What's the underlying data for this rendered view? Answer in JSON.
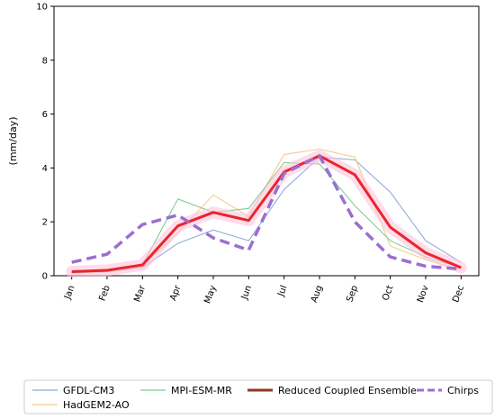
{
  "chart_data": {
    "type": "line",
    "title": "",
    "xlabel": "",
    "ylabel": "(mm/day)",
    "ylim": [
      0,
      10
    ],
    "yticks": [
      0,
      2,
      4,
      6,
      8,
      10
    ],
    "grid": false,
    "legend_placement": "bottom",
    "categories": [
      "Jan",
      "Feb",
      "Mar",
      "Apr",
      "May",
      "Jun",
      "Jul",
      "Aug",
      "Sep",
      "Oct",
      "Nov",
      "Dec"
    ],
    "series": [
      {
        "name": "GFDL-CM3",
        "color": "#8fa6d8",
        "style": "solid",
        "values": [
          0.1,
          0.15,
          0.3,
          1.2,
          1.7,
          1.3,
          3.2,
          4.4,
          4.3,
          3.1,
          1.3,
          0.5
        ]
      },
      {
        "name": "HadGEM2-AO",
        "color": "#f3c98a",
        "style": "solid",
        "values": [
          0.1,
          0.15,
          0.35,
          1.6,
          3.0,
          2.2,
          4.5,
          4.7,
          4.4,
          1.1,
          0.6,
          0.2
        ]
      },
      {
        "name": "MPI-ESM-MR",
        "color": "#7dc98d",
        "style": "solid",
        "values": [
          0.1,
          0.15,
          0.4,
          2.85,
          2.35,
          2.5,
          4.2,
          4.15,
          2.6,
          1.3,
          0.7,
          0.3
        ]
      },
      {
        "name": "Reduced Coupled Ensemble",
        "color": "#e8262a",
        "style": "bold",
        "edge": "#8c3a22",
        "values": [
          0.15,
          0.2,
          0.4,
          1.85,
          2.35,
          2.05,
          3.85,
          4.45,
          3.75,
          1.8,
          0.85,
          0.3
        ]
      },
      {
        "name": "Chirps",
        "color": "#9b6fcf",
        "style": "dashed",
        "values": [
          0.5,
          0.8,
          1.9,
          2.25,
          1.4,
          0.95,
          3.8,
          4.45,
          2.0,
          0.7,
          0.35,
          0.25
        ]
      }
    ],
    "legend_columns": [
      [
        "GFDL-CM3",
        "HadGEM2-AO"
      ],
      [
        "MPI-ESM-MR"
      ],
      [
        "Reduced Coupled Ensemble"
      ],
      [
        "Chirps"
      ]
    ]
  }
}
